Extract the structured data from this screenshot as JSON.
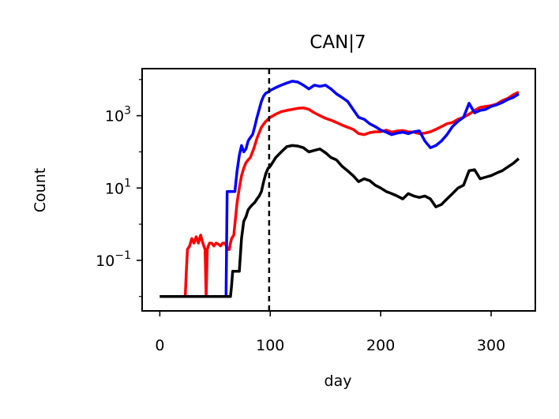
{
  "chart_data": {
    "type": "line",
    "title": "CAN|7",
    "xlabel": "day",
    "ylabel": "Count",
    "xlim": [
      -16,
      340
    ],
    "ylim": [
      0.004,
      20000
    ],
    "yscale": "log",
    "xticks": [
      0,
      100,
      200,
      300
    ],
    "xtick_labels": [
      "0",
      "100",
      "200",
      "300"
    ],
    "yticks": [
      0.1,
      10,
      1000
    ],
    "ytick_labels": [
      {
        "base": "10",
        "exp": "−1"
      },
      {
        "base": "10",
        "exp": "1"
      },
      {
        "base": "10",
        "exp": "3"
      }
    ],
    "vline": {
      "x": 99,
      "style": "dashed",
      "color": "#000000"
    },
    "grid": false,
    "legend": "none",
    "series": [
      {
        "color": "#ff0000",
        "x": [
          0,
          23,
          24,
          25,
          27,
          29,
          31,
          33,
          35,
          37,
          39,
          41,
          42,
          43,
          44,
          45,
          47,
          49,
          51,
          53,
          55,
          57,
          59,
          61,
          62,
          63,
          64,
          65,
          67,
          68,
          70,
          72,
          74,
          76,
          78,
          80,
          82,
          85,
          88,
          92,
          96,
          100,
          105,
          110,
          115,
          120,
          125,
          130,
          135,
          140,
          145,
          150,
          155,
          160,
          165,
          170,
          175,
          180,
          185,
          190,
          195,
          200,
          205,
          210,
          215,
          220,
          225,
          230,
          235,
          240,
          245,
          250,
          255,
          260,
          265,
          270,
          275,
          280,
          285,
          290,
          295,
          300,
          305,
          310,
          315,
          320,
          325
        ],
        "y": [
          0.01,
          0.01,
          0.05,
          0.2,
          0.25,
          0.4,
          0.3,
          0.45,
          0.3,
          0.5,
          0.3,
          0.2,
          0.01,
          0.2,
          0.25,
          0.3,
          0.3,
          0.25,
          0.3,
          0.28,
          0.25,
          0.3,
          0.3,
          0.22,
          0.2,
          0.2,
          0.3,
          0.4,
          0.5,
          1,
          4,
          10,
          22,
          35,
          50,
          60,
          70,
          120,
          240,
          480,
          700,
          900,
          1100,
          1300,
          1400,
          1500,
          1600,
          1650,
          1500,
          1200,
          1000,
          850,
          750,
          650,
          550,
          480,
          420,
          320,
          300,
          340,
          360,
          360,
          400,
          350,
          380,
          390,
          360,
          350,
          320,
          330,
          360,
          420,
          500,
          600,
          650,
          800,
          900,
          1100,
          1400,
          1700,
          1800,
          1900,
          2100,
          2600,
          3000,
          3800,
          4500
        ]
      },
      {
        "color": "#0000ff",
        "x": [
          0,
          60,
          61,
          62,
          63,
          64,
          65,
          66,
          67,
          68,
          70,
          72,
          74,
          76,
          78,
          80,
          82,
          84,
          86,
          88,
          90,
          92,
          94,
          96,
          98,
          100,
          105,
          110,
          115,
          120,
          125,
          130,
          135,
          140,
          145,
          150,
          155,
          160,
          165,
          170,
          175,
          180,
          185,
          190,
          195,
          200,
          205,
          210,
          215,
          220,
          225,
          230,
          235,
          240,
          245,
          250,
          255,
          260,
          265,
          270,
          275,
          280,
          285,
          290,
          295,
          300,
          305,
          310,
          315,
          320,
          325
        ],
        "y": [
          0.01,
          0.01,
          8,
          8,
          8,
          8,
          8,
          8,
          8,
          8,
          30,
          80,
          150,
          100,
          120,
          200,
          250,
          300,
          500,
          900,
          1500,
          2500,
          3500,
          4200,
          4500,
          5000,
          6000,
          7000,
          8000,
          9000,
          8500,
          7000,
          5500,
          7000,
          6500,
          7000,
          5500,
          4000,
          3200,
          2500,
          1500,
          900,
          800,
          600,
          500,
          400,
          350,
          300,
          330,
          350,
          320,
          360,
          380,
          200,
          130,
          150,
          200,
          300,
          500,
          700,
          900,
          2200,
          1200,
          1400,
          1500,
          1800,
          2000,
          2300,
          2800,
          3200,
          4000
        ]
      },
      {
        "color": "#000000",
        "x": [
          0,
          64,
          65,
          66,
          67,
          68,
          70,
          72,
          74,
          76,
          78,
          80,
          82,
          84,
          86,
          88,
          90,
          92,
          94,
          96,
          98,
          100,
          105,
          110,
          115,
          120,
          125,
          130,
          135,
          140,
          145,
          150,
          155,
          160,
          165,
          170,
          175,
          180,
          185,
          190,
          195,
          200,
          205,
          210,
          215,
          220,
          225,
          230,
          235,
          240,
          245,
          250,
          255,
          260,
          265,
          270,
          275,
          280,
          285,
          290,
          295,
          300,
          305,
          310,
          315,
          320,
          325
        ],
        "y": [
          0.01,
          0.01,
          0.02,
          0.05,
          0.05,
          0.05,
          0.05,
          0.05,
          0.4,
          1.2,
          1.6,
          2.5,
          3,
          3.5,
          4,
          5,
          6,
          8,
          15,
          25,
          35,
          40,
          70,
          100,
          140,
          150,
          145,
          130,
          100,
          110,
          120,
          95,
          70,
          60,
          40,
          30,
          22,
          15,
          18,
          16,
          12,
          10,
          8,
          7,
          6,
          5,
          7,
          6,
          5.5,
          6,
          5,
          3,
          3.5,
          5,
          7,
          10,
          12,
          30,
          32,
          18,
          20,
          22,
          26,
          30,
          38,
          48,
          65
        ]
      }
    ]
  }
}
